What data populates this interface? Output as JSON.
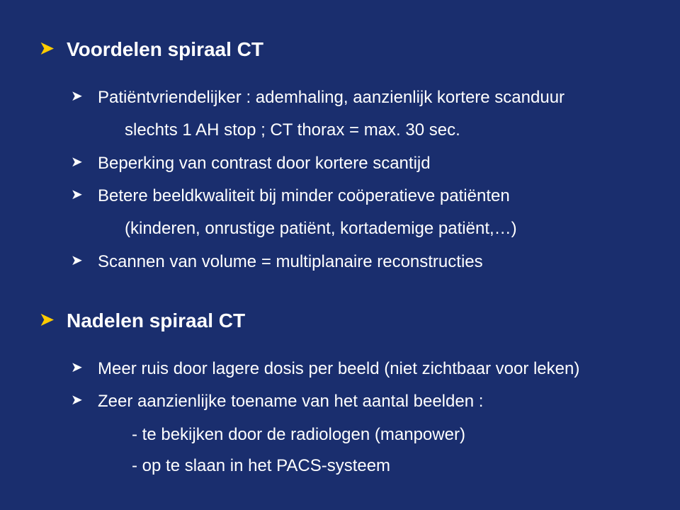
{
  "colors": {
    "background": "#1a2e6e",
    "text": "#ffffff",
    "accent_bullet": "#ffcc00",
    "sub_bullet": "#ffffff"
  },
  "typography": {
    "family": "Arial",
    "heading_size_pt": 28,
    "body_size_pt": 24,
    "heading_weight": 700,
    "body_weight": 400
  },
  "slide": {
    "title1": "Voordelen spiraal CT",
    "t1_items": {
      "i0": "Patiëntvriendelijker : ademhaling, aanzienlijk kortere scanduur",
      "i0_sub": "slechts 1 AH stop ;  CT thorax = max. 30 sec.",
      "i1": "Beperking van contrast door kortere scantijd",
      "i2": "Betere beeldkwaliteit bij minder coöperatieve patiënten",
      "i2_sub": "(kinderen, onrustige patiënt, kortademige patiënt,…)",
      "i3": "Scannen van volume =  multiplanaire reconstructies"
    },
    "title2": "Nadelen spiraal CT",
    "t2_items": {
      "i0": "Meer ruis door lagere dosis per beeld (niet zichtbaar voor leken)",
      "i1": "Zeer aanzienlijke toename van het aantal beelden :",
      "i1_d0": "- te bekijken door de radiologen (manpower)",
      "i1_d1": "- op te slaan in het PACS-systeem"
    }
  }
}
